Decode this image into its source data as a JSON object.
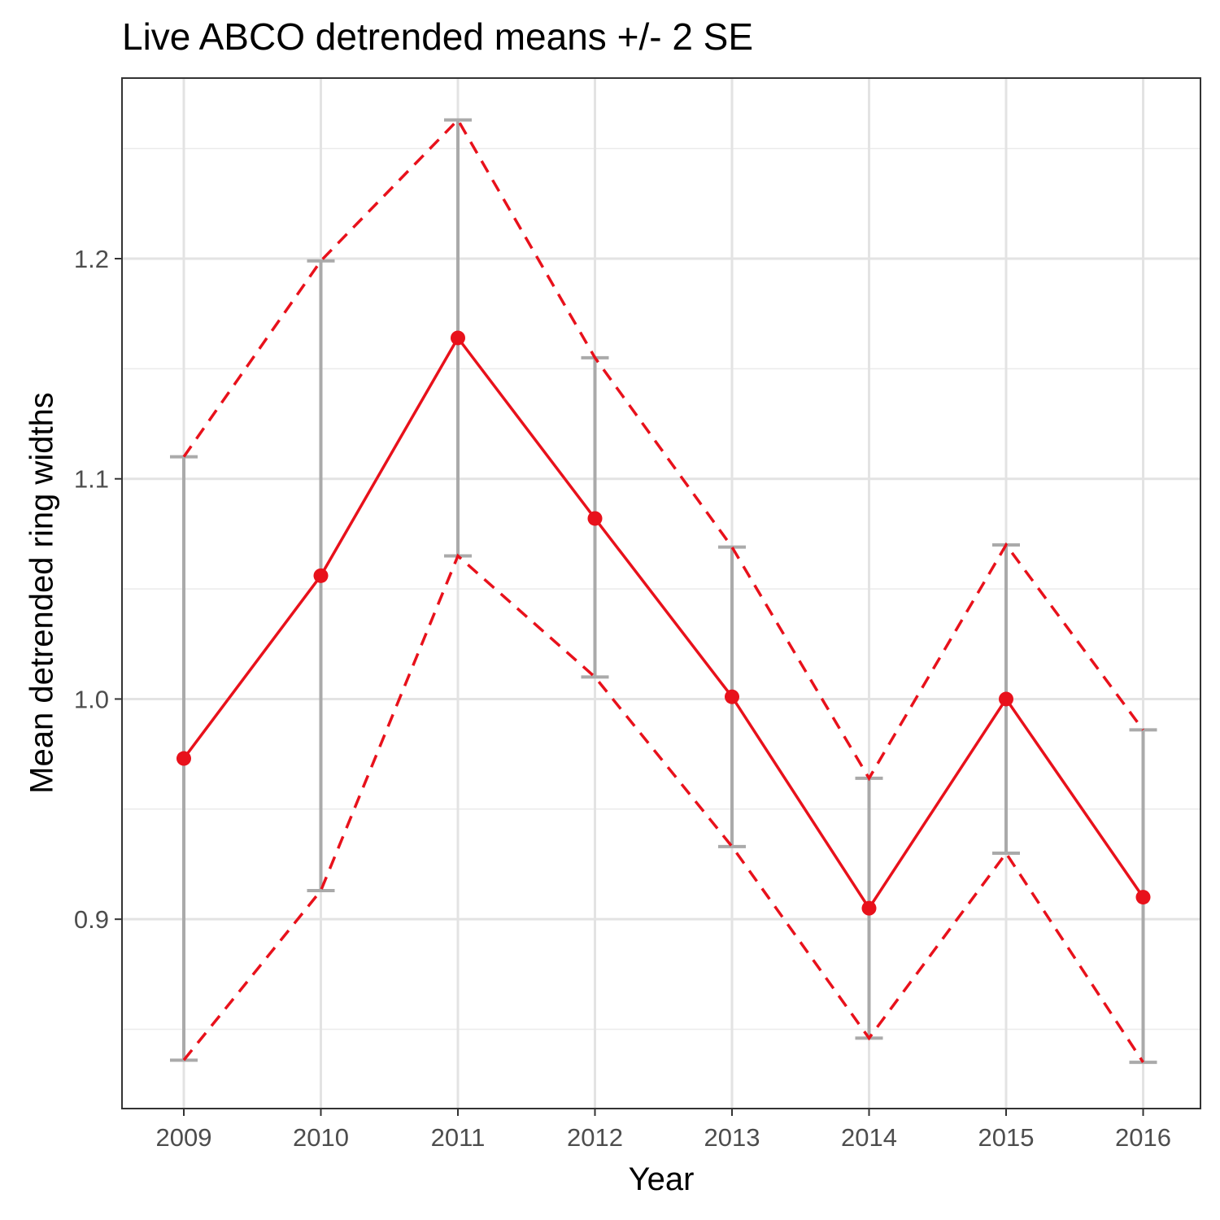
{
  "chart_data": {
    "type": "line",
    "title": "Live ABCO detrended means +/- 2 SE",
    "xlabel": "Year",
    "ylabel": "Mean detrended ring widths",
    "x": [
      2009,
      2010,
      2011,
      2012,
      2013,
      2014,
      2015,
      2016
    ],
    "x_tick_labels": [
      "2009",
      "2010",
      "2011",
      "2012",
      "2013",
      "2014",
      "2015",
      "2016"
    ],
    "y_ticks": [
      0.9,
      1.0,
      1.1,
      1.2
    ],
    "y_tick_labels": [
      "0.9",
      "1.0",
      "1.1",
      "1.2"
    ],
    "ylim": [
      0.814,
      1.282
    ],
    "grid": true,
    "series": [
      {
        "role": "mean",
        "values": [
          0.973,
          1.056,
          1.164,
          1.082,
          1.001,
          0.905,
          1.0,
          0.91
        ],
        "color": "#e8111b",
        "style": "solid",
        "markers": true
      },
      {
        "role": "upper_bound",
        "values": [
          1.11,
          1.199,
          1.263,
          1.155,
          1.069,
          0.964,
          1.07,
          0.986
        ],
        "color": "#e8111b",
        "style": "dashed"
      },
      {
        "role": "lower_bound",
        "values": [
          0.836,
          0.913,
          1.065,
          1.01,
          0.933,
          0.846,
          0.93,
          0.835
        ],
        "color": "#e8111b",
        "style": "dashed"
      }
    ],
    "error_bars": {
      "color": "#aaaaaa"
    }
  }
}
